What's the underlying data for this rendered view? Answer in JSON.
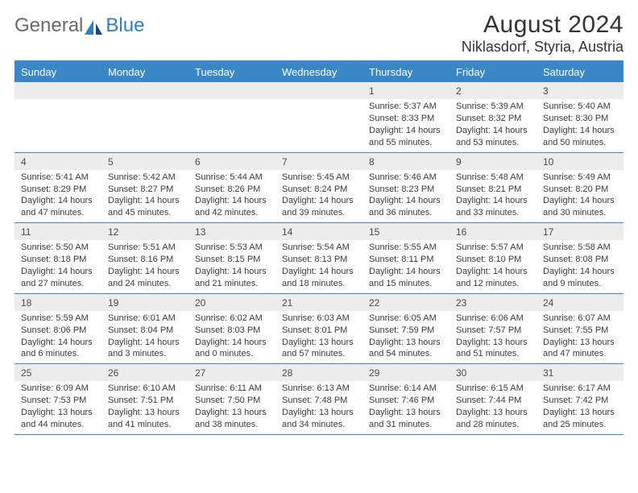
{
  "logo": {
    "text_general": "General",
    "text_blue": "Blue"
  },
  "title": "August 2024",
  "location": "Niklasdorf, Styria, Austria",
  "colors": {
    "header_bg": "#3a87c8",
    "header_text": "#ffffff",
    "cell_num_bg": "#ececec",
    "text": "#333333",
    "border": "#3a87c8"
  },
  "typography": {
    "title_fontsize": 30,
    "location_fontsize": 18,
    "day_fontsize": 13,
    "cell_fontsize": 11
  },
  "calendar": {
    "type": "table",
    "days": [
      "Sunday",
      "Monday",
      "Tuesday",
      "Wednesday",
      "Thursday",
      "Friday",
      "Saturday"
    ],
    "weeks": [
      [
        {
          "n": "",
          "sr": "",
          "ss": "",
          "dl": ""
        },
        {
          "n": "",
          "sr": "",
          "ss": "",
          "dl": ""
        },
        {
          "n": "",
          "sr": "",
          "ss": "",
          "dl": ""
        },
        {
          "n": "",
          "sr": "",
          "ss": "",
          "dl": ""
        },
        {
          "n": "1",
          "sr": "Sunrise: 5:37 AM",
          "ss": "Sunset: 8:33 PM",
          "dl": "Daylight: 14 hours and 55 minutes."
        },
        {
          "n": "2",
          "sr": "Sunrise: 5:39 AM",
          "ss": "Sunset: 8:32 PM",
          "dl": "Daylight: 14 hours and 53 minutes."
        },
        {
          "n": "3",
          "sr": "Sunrise: 5:40 AM",
          "ss": "Sunset: 8:30 PM",
          "dl": "Daylight: 14 hours and 50 minutes."
        }
      ],
      [
        {
          "n": "4",
          "sr": "Sunrise: 5:41 AM",
          "ss": "Sunset: 8:29 PM",
          "dl": "Daylight: 14 hours and 47 minutes."
        },
        {
          "n": "5",
          "sr": "Sunrise: 5:42 AM",
          "ss": "Sunset: 8:27 PM",
          "dl": "Daylight: 14 hours and 45 minutes."
        },
        {
          "n": "6",
          "sr": "Sunrise: 5:44 AM",
          "ss": "Sunset: 8:26 PM",
          "dl": "Daylight: 14 hours and 42 minutes."
        },
        {
          "n": "7",
          "sr": "Sunrise: 5:45 AM",
          "ss": "Sunset: 8:24 PM",
          "dl": "Daylight: 14 hours and 39 minutes."
        },
        {
          "n": "8",
          "sr": "Sunrise: 5:46 AM",
          "ss": "Sunset: 8:23 PM",
          "dl": "Daylight: 14 hours and 36 minutes."
        },
        {
          "n": "9",
          "sr": "Sunrise: 5:48 AM",
          "ss": "Sunset: 8:21 PM",
          "dl": "Daylight: 14 hours and 33 minutes."
        },
        {
          "n": "10",
          "sr": "Sunrise: 5:49 AM",
          "ss": "Sunset: 8:20 PM",
          "dl": "Daylight: 14 hours and 30 minutes."
        }
      ],
      [
        {
          "n": "11",
          "sr": "Sunrise: 5:50 AM",
          "ss": "Sunset: 8:18 PM",
          "dl": "Daylight: 14 hours and 27 minutes."
        },
        {
          "n": "12",
          "sr": "Sunrise: 5:51 AM",
          "ss": "Sunset: 8:16 PM",
          "dl": "Daylight: 14 hours and 24 minutes."
        },
        {
          "n": "13",
          "sr": "Sunrise: 5:53 AM",
          "ss": "Sunset: 8:15 PM",
          "dl": "Daylight: 14 hours and 21 minutes."
        },
        {
          "n": "14",
          "sr": "Sunrise: 5:54 AM",
          "ss": "Sunset: 8:13 PM",
          "dl": "Daylight: 14 hours and 18 minutes."
        },
        {
          "n": "15",
          "sr": "Sunrise: 5:55 AM",
          "ss": "Sunset: 8:11 PM",
          "dl": "Daylight: 14 hours and 15 minutes."
        },
        {
          "n": "16",
          "sr": "Sunrise: 5:57 AM",
          "ss": "Sunset: 8:10 PM",
          "dl": "Daylight: 14 hours and 12 minutes."
        },
        {
          "n": "17",
          "sr": "Sunrise: 5:58 AM",
          "ss": "Sunset: 8:08 PM",
          "dl": "Daylight: 14 hours and 9 minutes."
        }
      ],
      [
        {
          "n": "18",
          "sr": "Sunrise: 5:59 AM",
          "ss": "Sunset: 8:06 PM",
          "dl": "Daylight: 14 hours and 6 minutes."
        },
        {
          "n": "19",
          "sr": "Sunrise: 6:01 AM",
          "ss": "Sunset: 8:04 PM",
          "dl": "Daylight: 14 hours and 3 minutes."
        },
        {
          "n": "20",
          "sr": "Sunrise: 6:02 AM",
          "ss": "Sunset: 8:03 PM",
          "dl": "Daylight: 14 hours and 0 minutes."
        },
        {
          "n": "21",
          "sr": "Sunrise: 6:03 AM",
          "ss": "Sunset: 8:01 PM",
          "dl": "Daylight: 13 hours and 57 minutes."
        },
        {
          "n": "22",
          "sr": "Sunrise: 6:05 AM",
          "ss": "Sunset: 7:59 PM",
          "dl": "Daylight: 13 hours and 54 minutes."
        },
        {
          "n": "23",
          "sr": "Sunrise: 6:06 AM",
          "ss": "Sunset: 7:57 PM",
          "dl": "Daylight: 13 hours and 51 minutes."
        },
        {
          "n": "24",
          "sr": "Sunrise: 6:07 AM",
          "ss": "Sunset: 7:55 PM",
          "dl": "Daylight: 13 hours and 47 minutes."
        }
      ],
      [
        {
          "n": "25",
          "sr": "Sunrise: 6:09 AM",
          "ss": "Sunset: 7:53 PM",
          "dl": "Daylight: 13 hours and 44 minutes."
        },
        {
          "n": "26",
          "sr": "Sunrise: 6:10 AM",
          "ss": "Sunset: 7:51 PM",
          "dl": "Daylight: 13 hours and 41 minutes."
        },
        {
          "n": "27",
          "sr": "Sunrise: 6:11 AM",
          "ss": "Sunset: 7:50 PM",
          "dl": "Daylight: 13 hours and 38 minutes."
        },
        {
          "n": "28",
          "sr": "Sunrise: 6:13 AM",
          "ss": "Sunset: 7:48 PM",
          "dl": "Daylight: 13 hours and 34 minutes."
        },
        {
          "n": "29",
          "sr": "Sunrise: 6:14 AM",
          "ss": "Sunset: 7:46 PM",
          "dl": "Daylight: 13 hours and 31 minutes."
        },
        {
          "n": "30",
          "sr": "Sunrise: 6:15 AM",
          "ss": "Sunset: 7:44 PM",
          "dl": "Daylight: 13 hours and 28 minutes."
        },
        {
          "n": "31",
          "sr": "Sunrise: 6:17 AM",
          "ss": "Sunset: 7:42 PM",
          "dl": "Daylight: 13 hours and 25 minutes."
        }
      ]
    ]
  }
}
